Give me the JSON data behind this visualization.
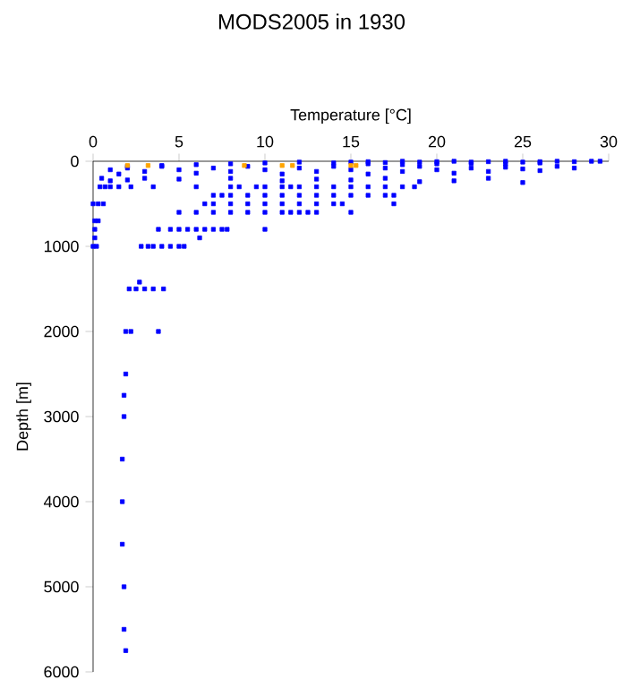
{
  "chart_data": {
    "type": "scatter",
    "title": "MODS2005 in 1930",
    "xlabel": "Temperature [°C]",
    "ylabel": "Depth [m]",
    "xlim": [
      0,
      30
    ],
    "ylim": [
      6000,
      0
    ],
    "xticks": [
      0,
      5,
      10,
      15,
      20,
      25,
      30
    ],
    "yticks": [
      0,
      1000,
      2000,
      3000,
      4000,
      5000,
      6000
    ],
    "grid": false,
    "marker": "square",
    "series": [
      {
        "color": "#0000ff",
        "x": [
          15,
          16,
          17,
          18,
          19,
          20,
          21,
          22,
          23,
          24,
          25,
          26,
          27,
          28,
          29,
          29.5,
          26,
          24,
          22,
          20,
          18,
          16,
          14,
          12,
          10,
          8,
          6,
          4,
          2,
          1,
          1.5,
          2,
          3,
          4,
          5,
          6,
          7,
          8,
          9,
          10,
          11,
          12,
          13,
          14,
          15,
          16,
          17,
          18,
          19,
          20,
          21,
          22,
          23,
          24,
          25,
          26,
          27,
          28,
          0.5,
          1,
          2,
          3,
          5,
          8,
          11,
          13,
          15,
          17,
          19,
          21,
          23,
          25,
          0.4,
          0.7,
          1,
          1.5,
          2.2,
          3.5,
          6,
          8,
          8.5,
          9.5,
          10,
          11,
          11.5,
          12,
          13,
          14,
          15,
          16,
          17,
          18,
          18.7,
          7,
          7.5,
          8,
          9,
          10,
          11,
          12,
          13,
          14,
          15,
          16,
          17,
          17.5,
          0,
          0.3,
          0.6,
          6.5,
          7,
          8,
          9,
          10,
          11,
          12,
          13,
          14,
          14.5,
          17.5,
          5,
          6,
          7,
          8,
          9,
          10,
          11,
          11.5,
          12,
          12.5,
          13,
          15,
          0.1,
          0.3,
          0.1,
          3.8,
          4.5,
          5,
          5.5,
          6,
          6.5,
          7,
          7.5,
          7.8,
          10,
          0.1,
          6.2,
          0,
          0.2,
          2.8,
          3.2,
          3.5,
          4,
          4.5,
          5,
          5.3,
          2.7,
          2.1,
          2.5,
          3,
          3.5,
          4.1,
          1.9,
          2.2,
          3.8,
          1.9,
          1.8,
          1.8,
          1.7,
          1.7,
          1.7,
          1.8,
          1.8,
          1.9
        ],
        "values": [
          10,
          5,
          15,
          0,
          10,
          5,
          0,
          10,
          5,
          0,
          10,
          5,
          0,
          5,
          0,
          0,
          20,
          30,
          25,
          30,
          40,
          30,
          20,
          10,
          20,
          30,
          40,
          50,
          60,
          100,
          150,
          80,
          120,
          60,
          100,
          140,
          80,
          120,
          60,
          100,
          150,
          80,
          120,
          60,
          100,
          150,
          80,
          120,
          60,
          100,
          140,
          80,
          120,
          70,
          90,
          110,
          60,
          80,
          200,
          230,
          220,
          200,
          210,
          200,
          230,
          210,
          220,
          200,
          240,
          230,
          200,
          250,
          300,
          300,
          300,
          300,
          300,
          300,
          300,
          300,
          300,
          300,
          300,
          300,
          300,
          300,
          300,
          300,
          300,
          300,
          300,
          300,
          300,
          400,
          400,
          400,
          400,
          400,
          400,
          400,
          400,
          400,
          400,
          400,
          400,
          400,
          500,
          500,
          500,
          500,
          500,
          500,
          500,
          500,
          500,
          500,
          500,
          500,
          500,
          500,
          600,
          600,
          600,
          600,
          600,
          600,
          600,
          600,
          600,
          600,
          600,
          600,
          700,
          700,
          800,
          800,
          800,
          800,
          800,
          800,
          800,
          800,
          800,
          800,
          800,
          900,
          900,
          1000,
          1000,
          1000,
          1000,
          1000,
          1000,
          1000,
          1000,
          1000,
          1420,
          1500,
          1500,
          1500,
          1500,
          1500,
          2000,
          2000,
          2000,
          2500,
          2750,
          3000,
          3500,
          4000,
          4500,
          5000,
          5500,
          5750
        ]
      },
      {
        "color": "#ffa500",
        "x": [
          2,
          3.2,
          8.8,
          11,
          11.6,
          15,
          15.3
        ],
        "values": [
          50,
          50,
          50,
          50,
          50,
          50,
          50
        ]
      }
    ]
  }
}
